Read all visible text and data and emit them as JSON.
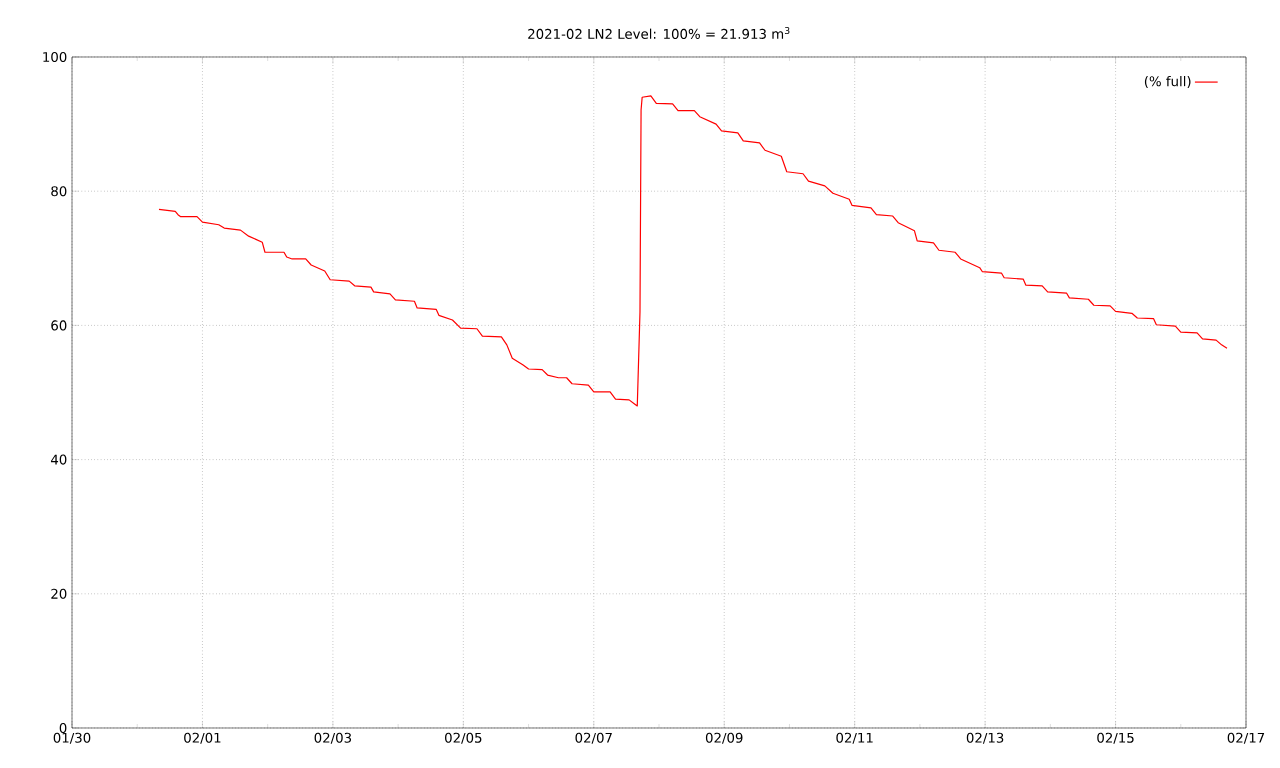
{
  "chart_data": {
    "type": "line",
    "title": "2021-02 LN2 Level: 100% = 21.913 m$^{3}$",
    "x": [
      "2021-01-31T08:00",
      "2021-01-31T14:00",
      "2021-01-31T15:00",
      "2021-01-31T16:00",
      "2021-01-31T22:00",
      "2021-02-01T00:00",
      "2021-02-01T06:00",
      "2021-02-01T08:00",
      "2021-02-01T14:00",
      "2021-02-01T17:00",
      "2021-02-01T22:00",
      "2021-02-01T23:00",
      "2021-02-02T06:00",
      "2021-02-02T07:00",
      "2021-02-02T09:00",
      "2021-02-02T14:00",
      "2021-02-02T16:00",
      "2021-02-02T21:00",
      "2021-02-02T23:00",
      "2021-02-03T06:00",
      "2021-02-03T08:00",
      "2021-02-03T14:00",
      "2021-02-03T15:00",
      "2021-02-03T21:00",
      "2021-02-03T23:00",
      "2021-02-04T06:00",
      "2021-02-04T07:00",
      "2021-02-04T14:00",
      "2021-02-04T15:00",
      "2021-02-04T20:00",
      "2021-02-04T23:00",
      "2021-02-05T05:00",
      "2021-02-05T07:00",
      "2021-02-05T14:00",
      "2021-02-05T16:00",
      "2021-02-05T18:00",
      "2021-02-05T22:00",
      "2021-02-06T00:00",
      "2021-02-06T05:00",
      "2021-02-06T07:00",
      "2021-02-06T11:00",
      "2021-02-06T14:00",
      "2021-02-06T16:00",
      "2021-02-06T22:00",
      "2021-02-07T00:00",
      "2021-02-07T06:00",
      "2021-02-07T08:00",
      "2021-02-07T13:00",
      "2021-02-07T15:00",
      "2021-02-07T16:00",
      "2021-02-07T17:00",
      "2021-02-07T17:24",
      "2021-02-07T17:48",
      "2021-02-07T21:00",
      "2021-02-07T23:00",
      "2021-02-08T05:00",
      "2021-02-08T07:00",
      "2021-02-08T13:00",
      "2021-02-08T15:00",
      "2021-02-08T21:00",
      "2021-02-08T23:00",
      "2021-02-09T05:00",
      "2021-02-09T07:00",
      "2021-02-09T13:00",
      "2021-02-09T15:00",
      "2021-02-09T21:00",
      "2021-02-09T23:00",
      "2021-02-10T05:00",
      "2021-02-10T07:00",
      "2021-02-10T13:00",
      "2021-02-10T16:00",
      "2021-02-10T22:00",
      "2021-02-10T23:00",
      "2021-02-11T06:00",
      "2021-02-11T08:00",
      "2021-02-11T14:00",
      "2021-02-11T16:00",
      "2021-02-11T22:00",
      "2021-02-11T23:00",
      "2021-02-12T05:00",
      "2021-02-12T07:00",
      "2021-02-12T13:00",
      "2021-02-12T15:00",
      "2021-02-12T22:00",
      "2021-02-12T23:00",
      "2021-02-13T06:00",
      "2021-02-13T07:00",
      "2021-02-13T14:00",
      "2021-02-13T15:00",
      "2021-02-13T21:00",
      "2021-02-13T23:00",
      "2021-02-14T06:00",
      "2021-02-14T07:00",
      "2021-02-14T14:00",
      "2021-02-14T16:00",
      "2021-02-14T22:00",
      "2021-02-15T00:00",
      "2021-02-15T06:00",
      "2021-02-15T08:00",
      "2021-02-15T14:00",
      "2021-02-15T15:00",
      "2021-02-15T22:00",
      "2021-02-16T00:00",
      "2021-02-16T06:00",
      "2021-02-16T08:00",
      "2021-02-16T13:00",
      "2021-02-16T15:00",
      "2021-02-16T17:00"
    ],
    "series": [
      {
        "name": "(% full)",
        "color": "#ff0000",
        "values": [
          77.3,
          77.0,
          76.5,
          76.2,
          76.2,
          75.4,
          75.0,
          74.5,
          74.2,
          73.3,
          72.4,
          70.9,
          70.9,
          70.2,
          69.9,
          69.9,
          69.0,
          68.1,
          66.8,
          66.6,
          65.9,
          65.7,
          65.0,
          64.7,
          63.8,
          63.6,
          62.6,
          62.4,
          61.5,
          60.8,
          59.6,
          59.5,
          58.4,
          58.3,
          57.1,
          55.1,
          54.1,
          53.5,
          53.4,
          52.6,
          52.2,
          52.2,
          51.3,
          51.1,
          50.1,
          50.1,
          49.0,
          48.9,
          48.3,
          48.0,
          62.0,
          92.1,
          94.0,
          94.2,
          93.1,
          93.0,
          92.0,
          92.0,
          91.1,
          90.0,
          89.0,
          88.7,
          87.5,
          87.2,
          86.1,
          85.2,
          82.9,
          82.6,
          81.5,
          80.8,
          79.7,
          78.8,
          77.9,
          77.5,
          76.5,
          76.3,
          75.3,
          74.1,
          72.6,
          72.3,
          71.2,
          70.9,
          69.9,
          68.6,
          68.0,
          67.8,
          67.1,
          66.9,
          66.0,
          65.9,
          65.0,
          64.8,
          64.1,
          63.9,
          63.0,
          62.9,
          62.1,
          61.8,
          61.1,
          61.0,
          60.1,
          59.9,
          59.0,
          58.9,
          58.0,
          57.8,
          57.1,
          56.6
        ]
      }
    ],
    "xlim": [
      "2021-01-30",
      "2021-02-17"
    ],
    "xticks": [
      {
        "value": "2021-01-30",
        "label": "01/30"
      },
      {
        "value": "2021-01-31",
        "label": null
      },
      {
        "value": "2021-02-01",
        "label": "02/01"
      },
      {
        "value": "2021-02-02",
        "label": null
      },
      {
        "value": "2021-02-03",
        "label": "02/03"
      },
      {
        "value": "2021-02-04",
        "label": null
      },
      {
        "value": "2021-02-05",
        "label": "02/05"
      },
      {
        "value": "2021-02-06",
        "label": null
      },
      {
        "value": "2021-02-07",
        "label": "02/07"
      },
      {
        "value": "2021-02-08",
        "label": null
      },
      {
        "value": "2021-02-09",
        "label": "02/09"
      },
      {
        "value": "2021-02-10",
        "label": null
      },
      {
        "value": "2021-02-11",
        "label": "02/11"
      },
      {
        "value": "2021-02-12",
        "label": null
      },
      {
        "value": "2021-02-13",
        "label": "02/13"
      },
      {
        "value": "2021-02-14",
        "label": null
      },
      {
        "value": "2021-02-15",
        "label": "02/15"
      },
      {
        "value": "2021-02-16",
        "label": null
      },
      {
        "value": "2021-02-17",
        "label": "02/17"
      }
    ],
    "ylim": [
      0,
      100
    ],
    "yticks": [
      0,
      20,
      40,
      60,
      80,
      100
    ],
    "grid": true,
    "legend": "top right"
  }
}
